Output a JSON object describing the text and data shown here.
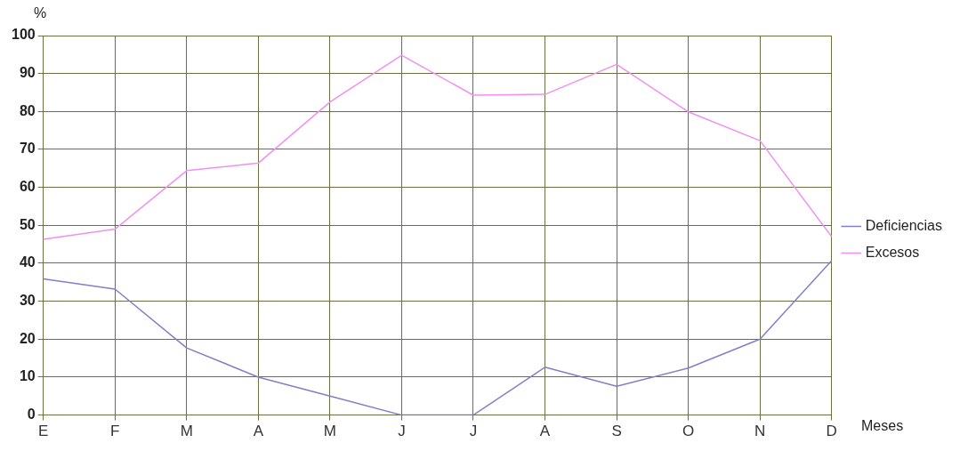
{
  "chart_data": {
    "type": "line",
    "xlabel": "Meses",
    "ylabel": "%",
    "categories": [
      "E",
      "F",
      "M",
      "A",
      "M",
      "J",
      "J",
      "A",
      "S",
      "O",
      "N",
      "D"
    ],
    "series": [
      {
        "name": "Deficiencias",
        "color": "#8080c8",
        "values": [
          35.9,
          33.2,
          17.7,
          10,
          5,
          0,
          0,
          12.6,
          7.6,
          12.4,
          20,
          40.7
        ]
      },
      {
        "name": "Excesos",
        "color": "#f090f0",
        "values": [
          46.3,
          49,
          64.4,
          66.4,
          82.5,
          94.8,
          84.3,
          84.5,
          92.4,
          79.9,
          72.3,
          47
        ]
      }
    ],
    "ylim": [
      0,
      100
    ],
    "yticks": [
      0,
      10,
      20,
      30,
      40,
      50,
      60,
      70,
      80,
      90,
      100
    ],
    "grid": true,
    "legend": "right",
    "marker": "none",
    "line_style": "solid"
  }
}
